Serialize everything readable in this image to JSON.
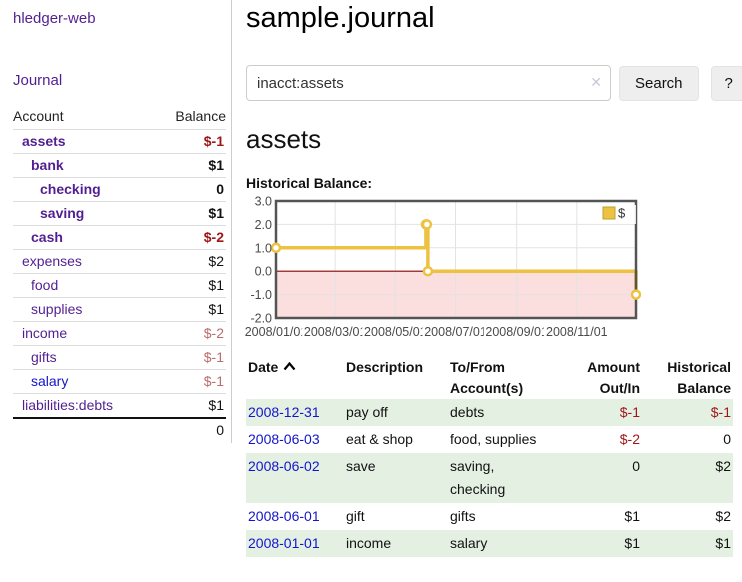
{
  "app": {
    "title": "hledger-web"
  },
  "sidebar": {
    "journal_link": "Journal",
    "accounts": {
      "col_account": "Account",
      "col_balance": "Balance",
      "rows": [
        {
          "account": "assets",
          "balance": "$-1",
          "depth": 0,
          "bold": true,
          "balance_style": "neg-strong",
          "link_color": "purple"
        },
        {
          "account": "bank",
          "balance": "$1",
          "depth": 1,
          "bold": true,
          "balance_style": "pos",
          "link_color": "purple"
        },
        {
          "account": "checking",
          "balance": "0",
          "depth": 2,
          "bold": true,
          "balance_style": "pos",
          "link_color": "purple"
        },
        {
          "account": "saving",
          "balance": "$1",
          "depth": 2,
          "bold": true,
          "balance_style": "pos",
          "link_color": "purple"
        },
        {
          "account": "cash",
          "balance": "$-2",
          "depth": 1,
          "bold": true,
          "balance_style": "neg-strong",
          "link_color": "purple"
        },
        {
          "account": "expenses",
          "balance": "$2",
          "depth": 0,
          "bold": false,
          "balance_style": "pos",
          "link_color": "purple"
        },
        {
          "account": "food",
          "balance": "$1",
          "depth": 1,
          "bold": false,
          "balance_style": "pos",
          "link_color": "purple"
        },
        {
          "account": "supplies",
          "balance": "$1",
          "depth": 1,
          "bold": false,
          "balance_style": "pos",
          "link_color": "purple"
        },
        {
          "account": "income",
          "balance": "$-2",
          "depth": 0,
          "bold": false,
          "balance_style": "neg-muted",
          "link_color": "purple"
        },
        {
          "account": "gifts",
          "balance": "$-1",
          "depth": 1,
          "bold": false,
          "balance_style": "neg-muted",
          "link_color": "purple"
        },
        {
          "account": "salary",
          "balance": "$-1",
          "depth": 1,
          "bold": false,
          "balance_style": "neg-muted",
          "link_color": "blue"
        },
        {
          "account": "liabilities:debts",
          "balance": "$1",
          "depth": 0,
          "bold": false,
          "balance_style": "pos",
          "link_color": "purple"
        }
      ],
      "total": "0"
    }
  },
  "main": {
    "title": "sample.journal",
    "search": {
      "value": "inacct:assets",
      "clear_icon": "✕",
      "button_label": "Search",
      "help_label": "?"
    },
    "account_heading": "assets",
    "register": {
      "columns": [
        "Date",
        "Description",
        "To/From Account(s)",
        "Amount Out/In",
        "Historical Balance"
      ],
      "sort_column": "Date",
      "sort_direction": "ascending",
      "rows": [
        {
          "date": "2008-12-31",
          "description": "pay off",
          "accounts": "debts",
          "amount": "$-1",
          "balance": "$-1",
          "amount_negative": true,
          "balance_negative": true
        },
        {
          "date": "2008-06-03",
          "description": "eat & shop",
          "accounts": "food, supplies",
          "amount": "$-2",
          "balance": "0",
          "amount_negative": true,
          "balance_negative": false
        },
        {
          "date": "2008-06-02",
          "description": "save",
          "accounts": "saving, checking",
          "amount": "0",
          "balance": "$2",
          "amount_negative": false,
          "balance_negative": false
        },
        {
          "date": "2008-06-01",
          "description": "gift",
          "accounts": "gifts",
          "amount": "$1",
          "balance": "$2",
          "amount_negative": false,
          "balance_negative": false
        },
        {
          "date": "2008-01-01",
          "description": "income",
          "accounts": "salary",
          "amount": "$1",
          "balance": "$1",
          "amount_negative": false,
          "balance_negative": false
        }
      ]
    }
  },
  "chart_data": {
    "type": "line",
    "title": "Historical Balance:",
    "step": true,
    "series": [
      {
        "name": "$",
        "color": "#edc240",
        "points": [
          [
            "2008-01-01",
            1
          ],
          [
            "2008-06-01",
            2
          ],
          [
            "2008-06-02",
            2
          ],
          [
            "2008-06-03",
            0
          ],
          [
            "2008-12-31",
            -1
          ]
        ]
      }
    ],
    "ylim": [
      -2,
      3
    ],
    "yticks": [
      "3.0",
      "2.0",
      "1.0",
      "0.0",
      "-1.0",
      "-2.0"
    ],
    "xticks": [
      "2008/01/01",
      "2008/03/01",
      "2008/05/01",
      "2008/07/01",
      "2008/09/01",
      "2008/11/01"
    ],
    "xrange": [
      "2008-01-01",
      "2008-12-31"
    ],
    "grid": true,
    "legend_position": "top-right",
    "negative_region_color": "#fbdede",
    "zero_line_color": "#8b0000"
  },
  "colors": {
    "link_purple": "#521f92",
    "link_blue": "#1414cc",
    "negative_strong": "#9e1616",
    "negative_muted": "#bb6b6b",
    "row_stripe_green": "#e4f1e2",
    "series_yellow": "#edc240"
  }
}
